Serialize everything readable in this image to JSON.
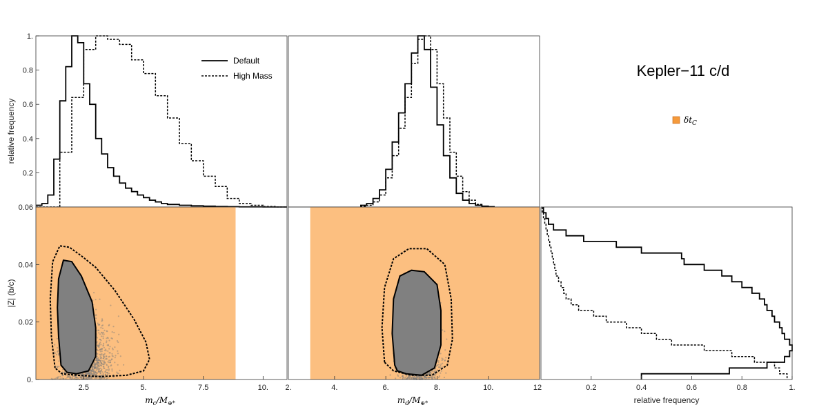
{
  "chart_data": {
    "type": "corner_plot",
    "title": "Kepler−11 c/d",
    "legend": {
      "lines": [
        {
          "label": "Default",
          "style": "solid"
        },
        {
          "label": "High Mass",
          "style": "dotted"
        }
      ],
      "region": {
        "label": "δt",
        "subscript": "C",
        "color": "#f59a3b"
      }
    },
    "colors": {
      "region": "#fcbf80",
      "scatter": "#7a7a7a",
      "line": "#000000"
    },
    "ylabel_hist": "relative frequency",
    "ylabel_z": "|Z| (b/c)",
    "panels": {
      "hist_mc": {
        "type": "histogram",
        "xlabel": "",
        "xlim": [
          0.5,
          11.0
        ],
        "ylim": [
          0,
          1.0
        ],
        "yticks": [
          0.2,
          0.4,
          0.6,
          0.8,
          1.0
        ],
        "ytick_labels": [
          "0.2",
          "0.4",
          "0.6",
          "0.8",
          "1."
        ],
        "series": [
          {
            "name": "Default",
            "style": "solid",
            "x": [
              0.5,
              0.75,
              1.0,
              1.25,
              1.5,
              1.75,
              2.0,
              2.25,
              2.5,
              2.75,
              3.0,
              3.25,
              3.5,
              3.75,
              4.0,
              4.25,
              4.5,
              4.75,
              5.0,
              5.25,
              5.5,
              5.75,
              6.0,
              6.5,
              7.0,
              7.5,
              8.0,
              8.5,
              9.0,
              9.5,
              10.0,
              10.5
            ],
            "values": [
              0.01,
              0.02,
              0.07,
              0.28,
              0.62,
              0.82,
              1.0,
              0.96,
              0.72,
              0.6,
              0.4,
              0.31,
              0.23,
              0.18,
              0.14,
              0.11,
              0.09,
              0.07,
              0.055,
              0.04,
              0.03,
              0.02,
              0.015,
              0.01,
              0.007,
              0.005,
              0.003,
              0.002,
              0.001,
              0.001,
              0.0,
              0.0
            ]
          },
          {
            "name": "High Mass",
            "style": "dotted",
            "x": [
              0.5,
              1.0,
              1.5,
              2.0,
              2.5,
              3.0,
              3.5,
              4.0,
              4.5,
              5.0,
              5.5,
              6.0,
              6.5,
              7.0,
              7.5,
              8.0,
              8.5,
              9.0,
              9.5,
              10.0,
              10.5
            ],
            "values": [
              0.0,
              0.0,
              0.32,
              0.64,
              0.92,
              1.0,
              0.98,
              0.95,
              0.86,
              0.78,
              0.65,
              0.52,
              0.37,
              0.27,
              0.18,
              0.12,
              0.05,
              0.02,
              0.01,
              0.003,
              0.0
            ]
          }
        ]
      },
      "hist_md": {
        "type": "histogram",
        "xlim": [
          2.2,
          12.0
        ],
        "ylim": [
          0,
          1.0
        ],
        "series": [
          {
            "name": "Default",
            "style": "solid",
            "x": [
              5.0,
              5.25,
              5.5,
              5.75,
              6.0,
              6.25,
              6.5,
              6.75,
              7.0,
              7.25,
              7.5,
              7.75,
              8.0,
              8.25,
              8.5,
              8.75,
              9.0,
              9.25,
              9.5,
              9.75,
              10.0
            ],
            "values": [
              0.01,
              0.02,
              0.05,
              0.1,
              0.22,
              0.38,
              0.55,
              0.72,
              0.9,
              1.0,
              0.92,
              0.7,
              0.48,
              0.3,
              0.17,
              0.08,
              0.04,
              0.02,
              0.01,
              0.005,
              0.002
            ]
          },
          {
            "name": "High Mass",
            "style": "dotted",
            "x": [
              5.0,
              5.25,
              5.5,
              5.75,
              6.0,
              6.25,
              6.5,
              6.75,
              7.0,
              7.25,
              7.5,
              7.75,
              8.0,
              8.25,
              8.5,
              8.75,
              9.0,
              9.25,
              9.5,
              9.75,
              10.0
            ],
            "values": [
              0.005,
              0.01,
              0.03,
              0.07,
              0.17,
              0.3,
              0.46,
              0.64,
              0.84,
              0.98,
              1.0,
              0.92,
              0.72,
              0.52,
              0.32,
              0.18,
              0.09,
              0.04,
              0.015,
              0.005,
              0.001
            ]
          }
        ]
      },
      "scatter_mc": {
        "xlim": [
          0.5,
          11.0
        ],
        "ylim": [
          0,
          0.06
        ],
        "xticks": [
          2.5,
          5.0,
          7.5,
          10.0
        ],
        "xtick_labels": [
          "2.5",
          "5.",
          "7.5",
          "10."
        ],
        "yticks": [
          0,
          0.02,
          0.04,
          0.06
        ],
        "ytick_labels": [
          "0.",
          "0.02",
          "0.04",
          "0.06"
        ],
        "xlabel": "m",
        "xlabel_sub": "c",
        "xlabel_tail": "/M",
        "xlabel_tail_sub": "⊕*",
        "region_x": [
          0.5,
          8.85
        ],
        "contour_inner": {
          "style": "solid",
          "x": [
            1.55,
            1.45,
            1.4,
            1.45,
            1.65,
            2.0,
            2.4,
            2.85,
            3.0,
            3.0,
            2.7,
            2.2,
            1.8,
            1.55
          ],
          "y": [
            0.005,
            0.015,
            0.025,
            0.035,
            0.0415,
            0.041,
            0.036,
            0.027,
            0.018,
            0.008,
            0.003,
            0.002,
            0.0025,
            0.005
          ]
        },
        "contour_outer": {
          "style": "dotted",
          "x": [
            1.3,
            1.15,
            1.1,
            1.2,
            1.5,
            1.9,
            2.4,
            3.0,
            3.8,
            4.6,
            5.1,
            5.25,
            5.0,
            4.3,
            3.2,
            2.2,
            1.6,
            1.3
          ],
          "y": [
            0.004,
            0.015,
            0.028,
            0.041,
            0.0465,
            0.046,
            0.043,
            0.039,
            0.031,
            0.021,
            0.013,
            0.007,
            0.003,
            0.0015,
            0.001,
            0.0015,
            0.002,
            0.004
          ]
        }
      },
      "scatter_md": {
        "xlim": [
          2.2,
          12.0
        ],
        "ylim": [
          0,
          0.06
        ],
        "xticks": [
          4.0,
          6.0,
          8.0,
          10.0
        ],
        "xtick_labels": [
          "4.",
          "6.",
          "8.",
          "10."
        ],
        "edge_left_label": "2.",
        "edge_right_label": "12",
        "xlabel": "m",
        "xlabel_sub": "d",
        "xlabel_tail": "/M",
        "xlabel_tail_sub": "⊕*",
        "region_x": [
          3.05,
          12.0
        ],
        "contour_inner": {
          "style": "solid",
          "x": [
            6.35,
            6.25,
            6.3,
            6.55,
            7.0,
            7.5,
            8.0,
            8.15,
            8.15,
            7.9,
            7.4,
            6.8,
            6.45,
            6.35
          ],
          "y": [
            0.005,
            0.016,
            0.028,
            0.036,
            0.038,
            0.0375,
            0.033,
            0.024,
            0.012,
            0.004,
            0.0015,
            0.002,
            0.003,
            0.005
          ]
        },
        "contour_outer": {
          "style": "dotted",
          "x": [
            5.95,
            5.85,
            5.95,
            6.3,
            6.9,
            7.6,
            8.3,
            8.55,
            8.6,
            8.4,
            7.8,
            7.0,
            6.3,
            5.95
          ],
          "y": [
            0.006,
            0.018,
            0.032,
            0.042,
            0.0455,
            0.0455,
            0.04,
            0.028,
            0.014,
            0.005,
            0.0015,
            0.0015,
            0.003,
            0.006
          ]
        }
      },
      "hist_z": {
        "type": "histogram_horizontal",
        "xlim": [
          0,
          1.0
        ],
        "ylim": [
          0,
          0.06
        ],
        "xticks": [
          0.2,
          0.4,
          0.6,
          0.8,
          1.0
        ],
        "xtick_labels": [
          "0.2",
          "0.4",
          "0.6",
          "0.8",
          "1."
        ],
        "xlabel": "relative frequency",
        "series": [
          {
            "name": "Default",
            "style": "solid",
            "y": [
              0.06,
              0.058,
              0.056,
              0.054,
              0.052,
              0.05,
              0.048,
              0.046,
              0.044,
              0.042,
              0.04,
              0.038,
              0.036,
              0.034,
              0.032,
              0.03,
              0.028,
              0.026,
              0.024,
              0.022,
              0.02,
              0.018,
              0.016,
              0.014,
              0.012,
              0.01,
              0.008,
              0.006,
              0.004,
              0.002
            ],
            "values": [
              0.01,
              0.02,
              0.03,
              0.05,
              0.1,
              0.17,
              0.3,
              0.4,
              0.56,
              0.57,
              0.65,
              0.72,
              0.76,
              0.8,
              0.84,
              0.87,
              0.89,
              0.9,
              0.92,
              0.93,
              0.95,
              0.96,
              0.97,
              0.99,
              1.0,
              0.99,
              0.97,
              0.9,
              0.75,
              0.4
            ]
          },
          {
            "name": "High Mass",
            "style": "dotted",
            "y": [
              0.06,
              0.058,
              0.056,
              0.054,
              0.052,
              0.05,
              0.048,
              0.046,
              0.044,
              0.042,
              0.04,
              0.038,
              0.036,
              0.034,
              0.032,
              0.03,
              0.028,
              0.026,
              0.024,
              0.022,
              0.02,
              0.018,
              0.016,
              0.014,
              0.012,
              0.01,
              0.008,
              0.006,
              0.004,
              0.002
            ],
            "values": [
              0.005,
              0.01,
              0.015,
              0.02,
              0.025,
              0.03,
              0.035,
              0.04,
              0.045,
              0.05,
              0.055,
              0.06,
              0.07,
              0.08,
              0.09,
              0.1,
              0.12,
              0.15,
              0.21,
              0.26,
              0.34,
              0.4,
              0.46,
              0.52,
              0.65,
              0.76,
              0.85,
              0.93,
              0.95,
              0.98
            ]
          }
        ]
      }
    }
  }
}
